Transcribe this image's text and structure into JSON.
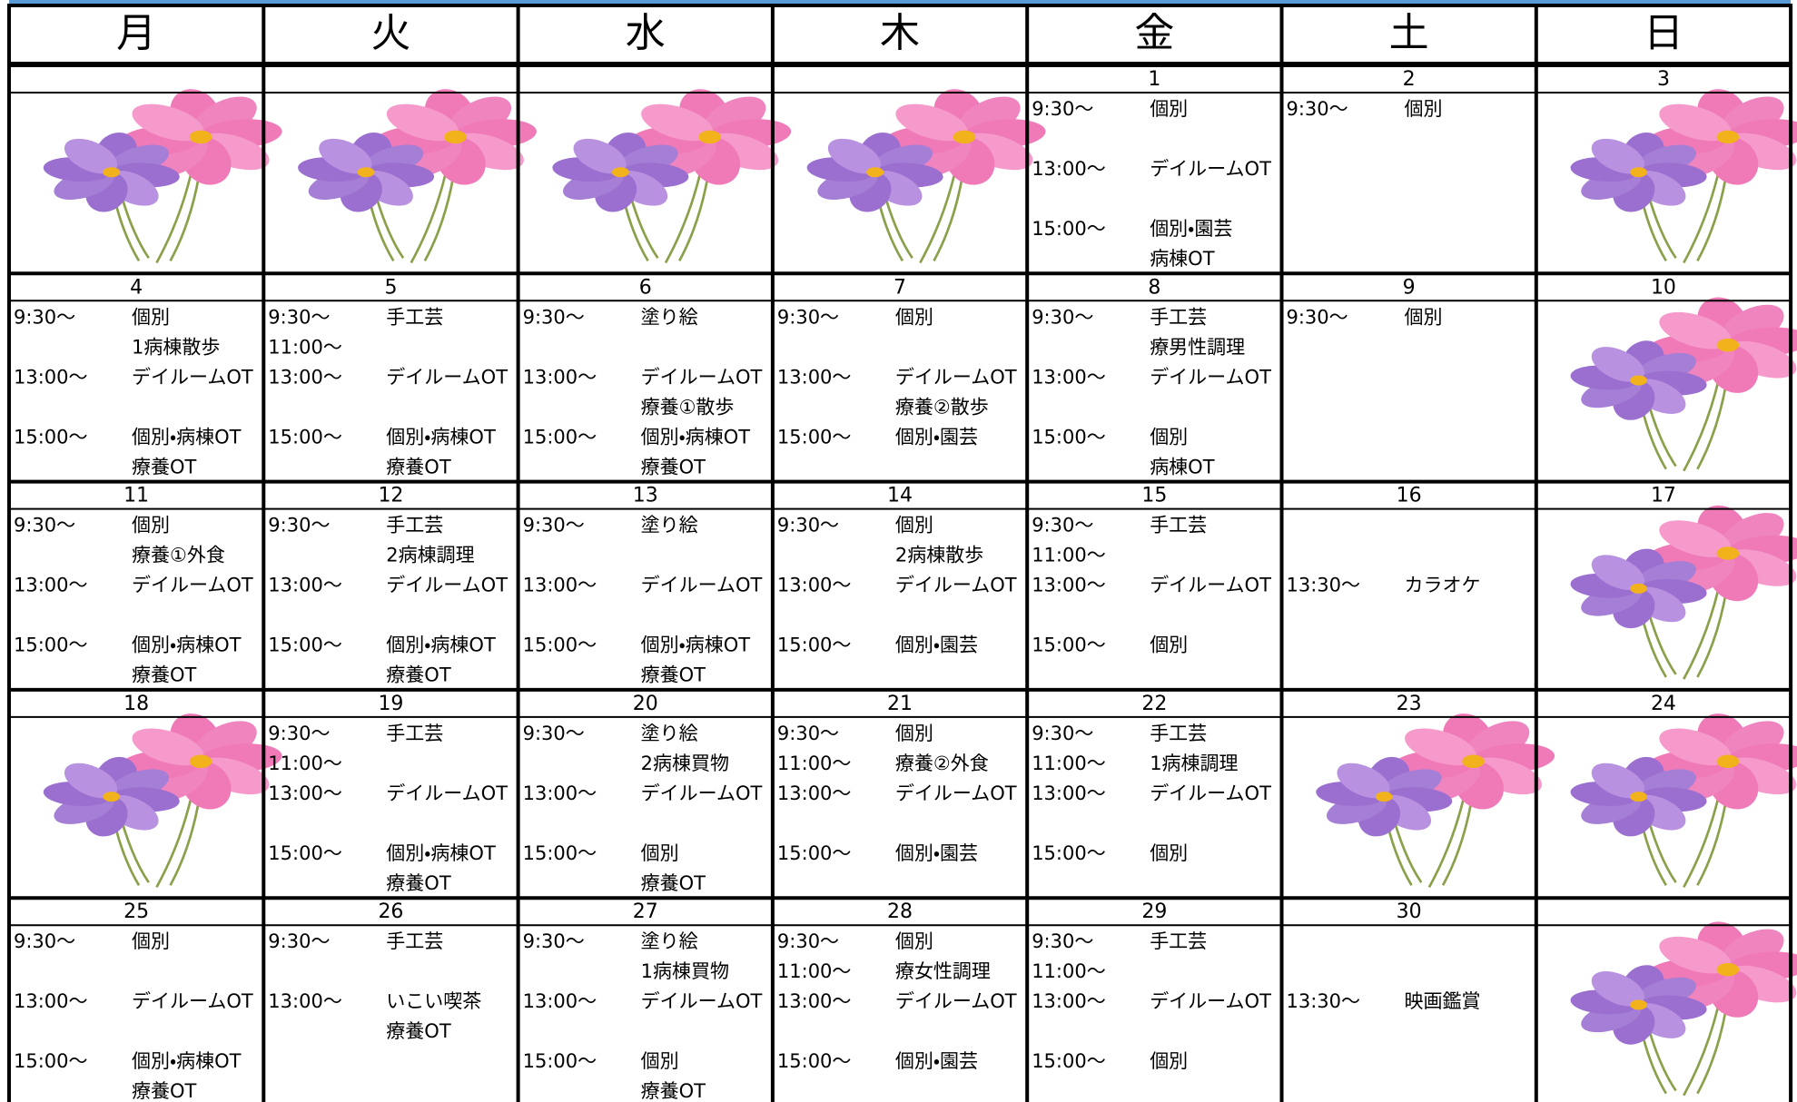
{
  "weekdays": [
    "月",
    "火",
    "水",
    "木",
    "金",
    "土",
    "日"
  ],
  "weeks": [
    {
      "dates": [
        null,
        null,
        null,
        null,
        "1",
        "2",
        "3"
      ],
      "cells": [
        [],
        [],
        [],
        [],
        [
          {
            "time": "9:30～",
            "activity": "個別"
          },
          null,
          {
            "time": "13:00～",
            "activity": "デイルームOT"
          },
          null,
          {
            "time": "15:00～",
            "activity": "個別・園芸"
          },
          {
            "activity": "病棟OT"
          }
        ],
        [
          {
            "time": "9:30～",
            "activity": "個別"
          },
          null,
          null,
          null,
          null,
          null
        ],
        []
      ]
    },
    {
      "dates": [
        "4",
        "5",
        "6",
        "7",
        "8",
        "9",
        "10"
      ],
      "cells": [
        [
          {
            "time": "9:30～",
            "activity": "個別"
          },
          {
            "activity": "1病棟散歩"
          },
          {
            "time": "13:00～",
            "activity": "デイルームOT"
          },
          null,
          {
            "time": "15:00～",
            "activity": "個別・病棟OT"
          },
          {
            "activity": "療養OT"
          }
        ],
        [
          {
            "time": "9:30～",
            "activity": "手工芸"
          },
          {
            "time": "11:00～"
          },
          {
            "time": "13:00～",
            "activity": "デイルームOT"
          },
          null,
          {
            "time": "15:00～",
            "activity": "個別・病棟OT"
          },
          {
            "activity": "療養OT"
          }
        ],
        [
          {
            "time": "9:30～",
            "activity": "塗り絵"
          },
          null,
          {
            "time": "13:00～",
            "activity": "デイルームOT"
          },
          {
            "activity": "療養①散歩"
          },
          {
            "time": "15:00～",
            "activity": "個別・病棟OT"
          },
          {
            "activity": "療養OT"
          }
        ],
        [
          {
            "time": "9:30～",
            "activity": "個別"
          },
          null,
          {
            "time": "13:00～",
            "activity": "デイルームOT"
          },
          {
            "activity": "療養②散歩"
          },
          {
            "time": "15:00～",
            "activity": "個別・園芸"
          },
          null
        ],
        [
          {
            "time": "9:30～",
            "activity": "手工芸"
          },
          {
            "activity": "療男性調理"
          },
          {
            "time": "13:00～",
            "activity": "デイルームOT"
          },
          null,
          {
            "time": "15:00～",
            "activity": "個別"
          },
          {
            "activity": "病棟OT"
          }
        ],
        [
          {
            "time": "9:30～",
            "activity": "個別"
          },
          null,
          null,
          null,
          null,
          null
        ],
        []
      ]
    },
    {
      "dates": [
        "11",
        "12",
        "13",
        "14",
        "15",
        "16",
        "17"
      ],
      "cells": [
        [
          {
            "time": "9:30～",
            "activity": "個別"
          },
          {
            "activity": "療養①外食"
          },
          {
            "time": "13:00～",
            "activity": "デイルームOT"
          },
          null,
          {
            "time": "15:00～",
            "activity": "個別・病棟OT"
          },
          {
            "activity": "療養OT"
          }
        ],
        [
          {
            "time": "9:30～",
            "activity": "手工芸"
          },
          {
            "activity": "2病棟調理"
          },
          {
            "time": "13:00～",
            "activity": "デイルームOT"
          },
          null,
          {
            "time": "15:00～",
            "activity": "個別・病棟OT"
          },
          {
            "activity": "療養OT"
          }
        ],
        [
          {
            "time": "9:30～",
            "activity": "塗り絵"
          },
          null,
          {
            "time": "13:00～",
            "activity": "デイルームOT"
          },
          null,
          {
            "time": "15:00～",
            "activity": "個別・病棟OT"
          },
          {
            "activity": "療養OT"
          }
        ],
        [
          {
            "time": "9:30～",
            "activity": "個別"
          },
          {
            "activity": "2病棟散歩"
          },
          {
            "time": "13:00～",
            "activity": "デイルームOT"
          },
          null,
          {
            "time": "15:00～",
            "activity": "個別・園芸"
          },
          null
        ],
        [
          {
            "time": "9:30～",
            "activity": "手工芸"
          },
          {
            "time": "11:00～"
          },
          {
            "time": "13:00～",
            "activity": "デイルームOT"
          },
          null,
          {
            "time": "15:00～",
            "activity": "個別"
          },
          null
        ],
        [
          null,
          null,
          {
            "time": "13:30～",
            "activity": "カラオケ"
          },
          null,
          null,
          null
        ],
        []
      ]
    },
    {
      "dates": [
        "18",
        "19",
        "20",
        "21",
        "22",
        "23",
        "24"
      ],
      "cells": [
        [],
        [
          {
            "time": "9:30～",
            "activity": "手工芸"
          },
          {
            "time": "11:00～"
          },
          {
            "time": "13:00～",
            "activity": "デイルームOT"
          },
          null,
          {
            "time": "15:00～",
            "activity": "個別・病棟OT"
          },
          {
            "activity": "療養OT"
          }
        ],
        [
          {
            "time": "9:30～",
            "activity": "塗り絵"
          },
          {
            "activity": "2病棟買物"
          },
          {
            "time": "13:00～",
            "activity": "デイルームOT"
          },
          null,
          {
            "time": "15:00～",
            "activity": "個別"
          },
          {
            "activity": "療養OT"
          }
        ],
        [
          {
            "time": "9:30～",
            "activity": "個別"
          },
          {
            "time": "11:00～",
            "activity": "療養②外食"
          },
          {
            "time": "13:00～",
            "activity": "デイルームOT"
          },
          null,
          {
            "time": "15:00～",
            "activity": "個別・園芸"
          },
          null
        ],
        [
          {
            "time": "9:30～",
            "activity": "手工芸"
          },
          {
            "time": "11:00～",
            "activity": "1病棟調理"
          },
          {
            "time": "13:00～",
            "activity": "デイルームOT"
          },
          null,
          {
            "time": "15:00～",
            "activity": "個別"
          },
          null
        ],
        [],
        []
      ]
    },
    {
      "dates": [
        "25",
        "26",
        "27",
        "28",
        "29",
        "30",
        null
      ],
      "cells": [
        [
          {
            "time": "9:30～",
            "activity": "個別"
          },
          null,
          {
            "time": "13:00～",
            "activity": "デイルームOT"
          },
          null,
          {
            "time": "15:00～",
            "activity": "個別・病棟OT"
          },
          {
            "activity": "療養OT"
          }
        ],
        [
          {
            "time": "9:30～",
            "activity": "手工芸"
          },
          null,
          {
            "time": "13:00～",
            "activity": "いこい喫茶"
          },
          {
            "activity": "療養OT"
          },
          null,
          null
        ],
        [
          {
            "time": "9:30～",
            "activity": "塗り絵"
          },
          {
            "activity": "1病棟買物"
          },
          {
            "time": "13:00～",
            "activity": "デイルームOT"
          },
          null,
          {
            "time": "15:00～",
            "activity": "個別"
          },
          {
            "activity": "療養OT"
          }
        ],
        [
          {
            "time": "9:30～",
            "activity": "個別"
          },
          {
            "time": "11:00～",
            "activity": "療女性調理"
          },
          {
            "time": "13:00～",
            "activity": "デイルームOT"
          },
          null,
          {
            "time": "15:00～",
            "activity": "個別・園芸"
          },
          null
        ],
        [
          {
            "time": "9:30～",
            "activity": "手工芸"
          },
          {
            "time": "11:00～"
          },
          {
            "time": "13:00～",
            "activity": "デイルームOT"
          },
          null,
          {
            "time": "15:00～",
            "activity": "個別"
          },
          null
        ],
        [
          null,
          null,
          {
            "time": "13:30～",
            "activity": "映画鑑賞"
          },
          null,
          null,
          null
        ],
        []
      ]
    }
  ]
}
